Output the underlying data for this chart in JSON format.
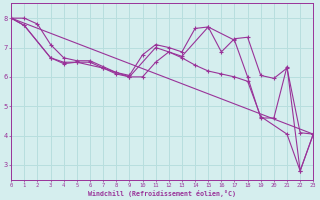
{
  "bg_color": "#d5eeee",
  "line_color": "#993399",
  "grid_color": "#b8dede",
  "xmin": 0,
  "xmax": 23,
  "ymin": 2.5,
  "ymax": 8.5,
  "yticks": [
    3,
    4,
    5,
    6,
    7,
    8
  ],
  "xlabel": "Windchill (Refroidissement éolien,°C)",
  "series": [
    {
      "x": [
        0,
        1,
        2,
        3,
        4,
        5,
        6,
        7,
        8,
        9,
        10,
        11,
        12,
        13,
        14,
        15,
        16,
        17,
        18,
        19,
        20,
        21,
        22,
        23
      ],
      "y": [
        8.0,
        8.0,
        7.8,
        7.1,
        6.65,
        6.55,
        6.55,
        6.35,
        6.15,
        6.05,
        6.75,
        7.1,
        7.0,
        6.85,
        7.65,
        7.7,
        6.85,
        7.3,
        7.35,
        6.05,
        5.95,
        6.3,
        4.1,
        4.05
      ],
      "has_markers": true
    },
    {
      "x": [
        0,
        1,
        3,
        4,
        5,
        7,
        9,
        11,
        13,
        15,
        17,
        18,
        19,
        20,
        21,
        22,
        23
      ],
      "y": [
        8.0,
        7.75,
        6.65,
        6.5,
        6.5,
        6.3,
        6.0,
        7.0,
        6.7,
        7.7,
        7.25,
        6.0,
        4.6,
        4.6,
        6.35,
        2.8,
        4.05
      ],
      "has_markers": true
    },
    {
      "x": [
        0,
        1,
        3,
        4,
        5,
        6,
        7,
        8,
        9,
        10,
        11,
        12,
        13,
        14,
        15,
        16,
        17,
        18,
        19,
        21,
        22,
        23
      ],
      "y": [
        8.0,
        7.75,
        6.65,
        6.45,
        6.5,
        6.5,
        6.3,
        6.1,
        6.0,
        6.0,
        6.5,
        6.85,
        6.65,
        6.4,
        6.2,
        6.1,
        6.0,
        5.85,
        4.65,
        4.05,
        2.8,
        4.05
      ],
      "has_markers": true
    },
    {
      "x": [
        0,
        23
      ],
      "y": [
        8.0,
        4.05
      ],
      "has_markers": false
    }
  ]
}
